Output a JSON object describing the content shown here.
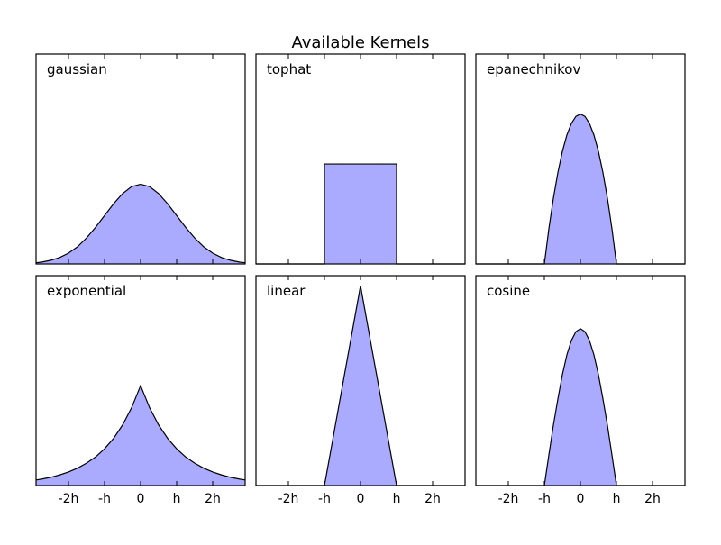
{
  "chart_data": {
    "type": "area",
    "title": "Available Kernels",
    "layout": "2x3 grid",
    "grid": false,
    "fill_color": "#aaaaff",
    "line_color": "#000000",
    "xlim": [
      -2.9,
      2.9
    ],
    "ylim": [
      0,
      1.05
    ],
    "xticks": [
      -2,
      -1,
      0,
      1,
      2
    ],
    "xtick_labels": [
      "-2h",
      "-h",
      "0",
      "h",
      "2h"
    ],
    "panels": [
      {
        "label": "gaussian",
        "x": [
          -2.9,
          -2.75,
          -2.5,
          -2.25,
          -2,
          -1.75,
          -1.5,
          -1.25,
          -1,
          -0.75,
          -0.5,
          -0.25,
          0,
          0.25,
          0.5,
          0.75,
          1,
          1.25,
          1.5,
          1.75,
          2,
          2.25,
          2.5,
          2.75,
          2.9
        ],
        "y": [
          0.006,
          0.009,
          0.018,
          0.032,
          0.054,
          0.086,
          0.13,
          0.183,
          0.242,
          0.301,
          0.352,
          0.387,
          0.399,
          0.387,
          0.352,
          0.301,
          0.242,
          0.183,
          0.13,
          0.086,
          0.054,
          0.032,
          0.018,
          0.009,
          0.006
        ]
      },
      {
        "label": "tophat",
        "x": [
          -2.9,
          -1,
          -1,
          1,
          1,
          2.9
        ],
        "y": [
          0,
          0,
          0.5,
          0.5,
          0,
          0
        ]
      },
      {
        "label": "epanechnikov",
        "x": [
          -2.9,
          -1,
          -0.875,
          -0.75,
          -0.625,
          -0.5,
          -0.375,
          -0.25,
          -0.125,
          0,
          0.125,
          0.25,
          0.375,
          0.5,
          0.625,
          0.75,
          0.875,
          1,
          2.9
        ],
        "y": [
          0,
          0,
          0.176,
          0.328,
          0.457,
          0.563,
          0.645,
          0.703,
          0.738,
          0.75,
          0.738,
          0.703,
          0.645,
          0.563,
          0.457,
          0.328,
          0.176,
          0,
          0
        ]
      },
      {
        "label": "exponential",
        "x": [
          -2.9,
          -2.75,
          -2.5,
          -2.25,
          -2,
          -1.75,
          -1.5,
          -1.25,
          -1,
          -0.75,
          -0.5,
          -0.25,
          0,
          0.25,
          0.5,
          0.75,
          1,
          1.25,
          1.5,
          1.75,
          2,
          2.25,
          2.5,
          2.75,
          2.9
        ],
        "y": [
          0.028,
          0.032,
          0.041,
          0.053,
          0.068,
          0.087,
          0.112,
          0.143,
          0.184,
          0.236,
          0.303,
          0.389,
          0.5,
          0.389,
          0.303,
          0.236,
          0.184,
          0.143,
          0.112,
          0.087,
          0.068,
          0.053,
          0.041,
          0.032,
          0.028
        ]
      },
      {
        "label": "linear",
        "x": [
          -2.9,
          -1,
          0,
          1,
          2.9
        ],
        "y": [
          0,
          0,
          1,
          0,
          0
        ]
      },
      {
        "label": "cosine",
        "x": [
          -2.9,
          -1,
          -0.875,
          -0.75,
          -0.625,
          -0.5,
          -0.375,
          -0.25,
          -0.125,
          0,
          0.125,
          0.25,
          0.375,
          0.5,
          0.625,
          0.75,
          0.875,
          1,
          2.9
        ],
        "y": [
          0,
          0,
          0.153,
          0.301,
          0.433,
          0.555,
          0.654,
          0.726,
          0.77,
          0.785,
          0.77,
          0.726,
          0.654,
          0.555,
          0.433,
          0.301,
          0.153,
          0,
          0
        ]
      }
    ]
  }
}
